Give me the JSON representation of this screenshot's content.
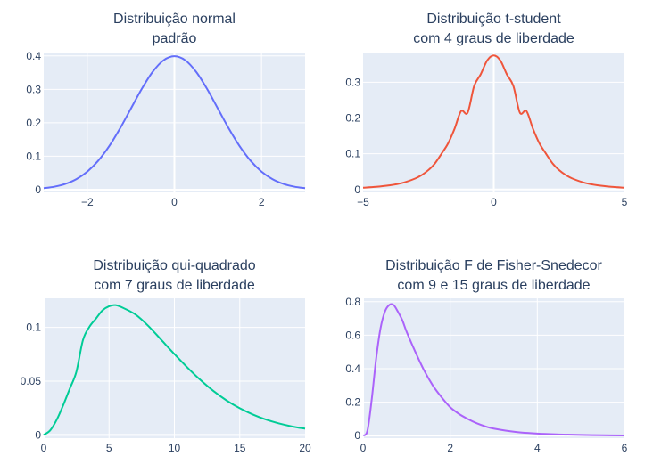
{
  "chart_data": [
    {
      "type": "line",
      "title": [
        "Distribuição normal",
        "padrão"
      ],
      "xlim": [
        -3,
        3
      ],
      "ylim": [
        -0.008,
        0.41
      ],
      "xticks": [
        {
          "value": -2,
          "label": "−2"
        },
        {
          "value": 0,
          "label": "0"
        },
        {
          "value": 2,
          "label": "2"
        }
      ],
      "yticks": [
        {
          "value": 0,
          "label": "0"
        },
        {
          "value": 0.1,
          "label": "0.1"
        },
        {
          "value": 0.2,
          "label": "0.2"
        },
        {
          "value": 0.3,
          "label": "0.3"
        },
        {
          "value": 0.4,
          "label": "0.4"
        }
      ],
      "color": "#636efa",
      "series": [
        {
          "x": [
            -3.0,
            -2.75,
            -2.5,
            -2.25,
            -2.0,
            -1.75,
            -1.5,
            -1.25,
            -1.0,
            -0.75,
            -0.5,
            -0.25,
            0.0,
            0.25,
            0.5,
            0.75,
            1.0,
            1.25,
            1.5,
            1.75,
            2.0,
            2.25,
            2.5,
            2.75,
            3.0
          ],
          "y": [
            0.0044,
            0.0091,
            0.0175,
            0.0317,
            0.054,
            0.0863,
            0.1295,
            0.1826,
            0.242,
            0.3011,
            0.3521,
            0.3867,
            0.3989,
            0.3867,
            0.3521,
            0.3011,
            0.242,
            0.1826,
            0.1295,
            0.0863,
            0.054,
            0.0317,
            0.0175,
            0.0091,
            0.0044
          ]
        }
      ]
    },
    {
      "type": "line",
      "title": [
        "Distribuição t-student",
        "com 4 graus de liberdade"
      ],
      "xlim": [
        -5,
        5
      ],
      "ylim": [
        -0.008,
        0.383
      ],
      "xticks": [
        {
          "value": -5,
          "label": "−5"
        },
        {
          "value": 0,
          "label": "0"
        },
        {
          "value": 5,
          "label": "5"
        }
      ],
      "yticks": [
        {
          "value": 0,
          "label": "0"
        },
        {
          "value": 0.1,
          "label": "0.1"
        },
        {
          "value": 0.2,
          "label": "0.2"
        },
        {
          "value": 0.3,
          "label": "0.3"
        }
      ],
      "color": "#ef553b",
      "series": [
        {
          "x": [
            -5.0,
            -4.5,
            -4.0,
            -3.5,
            -3.0,
            -2.75,
            -2.5,
            -2.25,
            -2.0,
            -1.75,
            -1.5,
            -1.25,
            -1.0,
            -0.75,
            -0.5,
            -0.25,
            0.0,
            0.25,
            0.5,
            0.75,
            1.0,
            1.25,
            1.5,
            1.75,
            2.0,
            2.25,
            2.5,
            2.75,
            3.0,
            3.5,
            4.0,
            4.5,
            5.0
          ],
          "y": [
            0.0051,
            0.0075,
            0.0115,
            0.0183,
            0.0309,
            0.0408,
            0.0544,
            0.0731,
            0.0999,
            0.1287,
            0.1699,
            0.2193,
            0.2147,
            0.2894,
            0.322,
            0.361,
            0.375,
            0.361,
            0.322,
            0.2894,
            0.2147,
            0.2193,
            0.1699,
            0.1287,
            0.0999,
            0.0731,
            0.0544,
            0.0408,
            0.0309,
            0.0183,
            0.0115,
            0.0075,
            0.0051
          ]
        }
      ]
    },
    {
      "type": "line",
      "title": [
        "Distribuição qui-quadrado",
        "com 7 graus de liberdade"
      ],
      "xlim": [
        0,
        20
      ],
      "ylim": [
        -0.003,
        0.127
      ],
      "xticks": [
        {
          "value": 0,
          "label": "0"
        },
        {
          "value": 5,
          "label": "5"
        },
        {
          "value": 10,
          "label": "10"
        },
        {
          "value": 15,
          "label": "15"
        },
        {
          "value": 20,
          "label": "20"
        }
      ],
      "yticks": [
        {
          "value": 0,
          "label": "0"
        },
        {
          "value": 0.05,
          "label": "0.05"
        },
        {
          "value": 0.1,
          "label": "0.1"
        }
      ],
      "color": "#00cc96",
      "series": [
        {
          "x": [
            0.0,
            0.5,
            1.0,
            1.5,
            2.0,
            2.5,
            3.0,
            3.5,
            4.0,
            4.5,
            5.0,
            5.5,
            6.0,
            7.0,
            8.0,
            9.0,
            10.0,
            11.0,
            12.0,
            13.0,
            14.0,
            15.0,
            16.0,
            17.0,
            18.0,
            19.0,
            20.0
          ],
          "y": [
            0.0,
            0.0043,
            0.0142,
            0.0279,
            0.0432,
            0.0588,
            0.0881,
            0.1006,
            0.1082,
            0.1158,
            0.1196,
            0.1207,
            0.1185,
            0.1121,
            0.1014,
            0.0883,
            0.0752,
            0.0626,
            0.051,
            0.0407,
            0.032,
            0.0248,
            0.019,
            0.0143,
            0.0107,
            0.0079,
            0.0058
          ]
        }
      ]
    },
    {
      "type": "line",
      "title": [
        "Distribuição F de Fisher-Snedecor",
        "com 9 e 15 graus de liberdade"
      ],
      "xlim": [
        0,
        6
      ],
      "ylim": [
        -0.015,
        0.82
      ],
      "xticks": [
        {
          "value": 0,
          "label": "0"
        },
        {
          "value": 2,
          "label": "2"
        },
        {
          "value": 4,
          "label": "4"
        },
        {
          "value": 6,
          "label": "6"
        }
      ],
      "yticks": [
        {
          "value": 0,
          "label": "0"
        },
        {
          "value": 0.2,
          "label": "0.2"
        },
        {
          "value": 0.4,
          "label": "0.4"
        },
        {
          "value": 0.6,
          "label": "0.6"
        },
        {
          "value": 0.8,
          "label": "0.8"
        }
      ],
      "color": "#ab63fa",
      "series": [
        {
          "x": [
            0.0,
            0.1,
            0.2,
            0.3,
            0.4,
            0.5,
            0.6,
            0.7,
            0.8,
            0.9,
            1.0,
            1.2,
            1.4,
            1.6,
            1.8,
            2.0,
            2.2,
            2.4,
            2.6,
            2.8,
            3.0,
            3.5,
            4.0,
            4.5,
            5.0,
            5.5,
            6.0
          ],
          "y": [
            0.0,
            0.03,
            0.22,
            0.46,
            0.64,
            0.74,
            0.78,
            0.78,
            0.74,
            0.69,
            0.62,
            0.5,
            0.39,
            0.3,
            0.23,
            0.17,
            0.13,
            0.1,
            0.075,
            0.056,
            0.042,
            0.022,
            0.012,
            0.007,
            0.004,
            0.002,
            0.001
          ]
        }
      ]
    }
  ]
}
